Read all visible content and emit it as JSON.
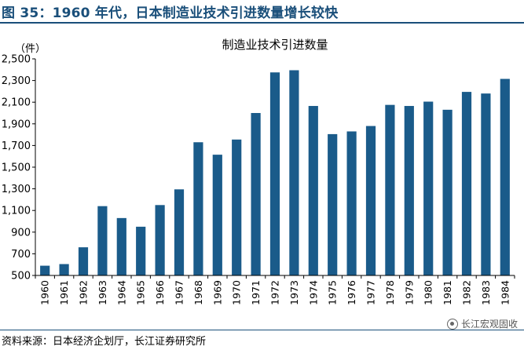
{
  "figure": {
    "title": "图 35：1960 年代，日本制造业技术引进数量增长较快",
    "source": "资料来源：日本经济企划厅，长江证券研究所",
    "watermark": "长江宏观固收"
  },
  "chart_data": {
    "type": "bar",
    "title": "制造业技术引进数量",
    "ylabel": "（件）",
    "xlabel": "",
    "ylim": [
      500,
      2500
    ],
    "yticks": [
      500,
      700,
      900,
      1100,
      1300,
      1500,
      1700,
      1900,
      2100,
      2300,
      2500
    ],
    "ytick_labels": [
      "500",
      "700",
      "900",
      "1,100",
      "1,300",
      "1,500",
      "1,700",
      "1,900",
      "2,100",
      "2,300",
      "2,500"
    ],
    "categories": [
      "1960",
      "1961",
      "1962",
      "1963",
      "1964",
      "1965",
      "1966",
      "1967",
      "1968",
      "1969",
      "1970",
      "1971",
      "1972",
      "1973",
      "1974",
      "1975",
      "1976",
      "1977",
      "1978",
      "1979",
      "1980",
      "1981",
      "1982",
      "1983",
      "1984"
    ],
    "values": [
      590,
      605,
      760,
      1140,
      1030,
      950,
      1150,
      1295,
      1730,
      1615,
      1755,
      2000,
      2375,
      2395,
      2065,
      1805,
      1830,
      1880,
      2075,
      2065,
      2105,
      2030,
      2195,
      2180,
      2315
    ],
    "bar_color": "#1a5b8a",
    "grid": false,
    "legend": "none"
  }
}
